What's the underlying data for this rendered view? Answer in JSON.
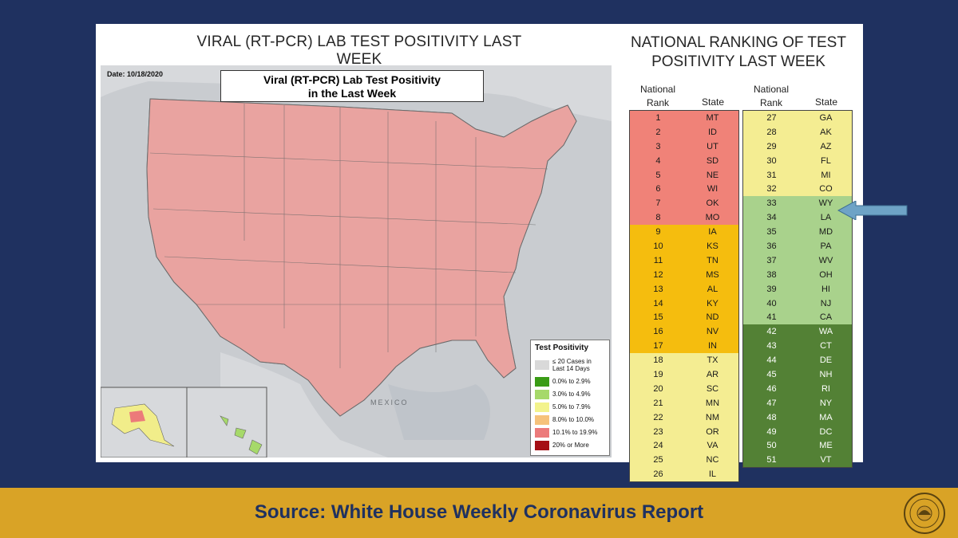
{
  "map_title": "VIRAL (RT-PCR) LAB TEST POSITIVITY LAST WEEK",
  "ranking_title_line1": "NATIONAL RANKING OF TEST",
  "ranking_title_line2": "POSITIVITY LAST WEEK",
  "map": {
    "date": "Date: 10/18/2020",
    "inner_title_line1": "Viral (RT-PCR) Lab Test Positivity",
    "inner_title_line2": "in the Last Week",
    "country_label": "MEXICO",
    "legend": {
      "title": "Test Positivity",
      "items": [
        {
          "label": "≤ 20 Cases in Last 14 Days",
          "color": "#d9d9d9"
        },
        {
          "label": "0.0% to 2.9%",
          "color": "#3a9c16"
        },
        {
          "label": "3.0% to 4.9%",
          "color": "#a6d96a"
        },
        {
          "label": "5.0% to 7.9%",
          "color": "#f3f38c"
        },
        {
          "label": "8.0% to 10.0%",
          "color": "#f6c27a"
        },
        {
          "label": "10.1% to 19.9%",
          "color": "#ec7a7a"
        },
        {
          "label": "20% or More",
          "color": "#a50f15"
        }
      ]
    }
  },
  "ranking": {
    "header_rank": "National Rank",
    "header_state": "State",
    "colors": {
      "red": "#f08278",
      "orange": "#f5bd0e",
      "yellow": "#f4ed92",
      "lightgreen": "#a9d28c",
      "darkgreen": "#538135"
    },
    "left": [
      {
        "rank": "1",
        "state": "MT",
        "band": "red"
      },
      {
        "rank": "2",
        "state": "ID",
        "band": "red"
      },
      {
        "rank": "3",
        "state": "UT",
        "band": "red"
      },
      {
        "rank": "4",
        "state": "SD",
        "band": "red"
      },
      {
        "rank": "5",
        "state": "NE",
        "band": "red"
      },
      {
        "rank": "6",
        "state": "WI",
        "band": "red"
      },
      {
        "rank": "7",
        "state": "OK",
        "band": "red"
      },
      {
        "rank": "8",
        "state": "MO",
        "band": "red"
      },
      {
        "rank": "9",
        "state": "IA",
        "band": "orange"
      },
      {
        "rank": "10",
        "state": "KS",
        "band": "orange"
      },
      {
        "rank": "11",
        "state": "TN",
        "band": "orange"
      },
      {
        "rank": "12",
        "state": "MS",
        "band": "orange"
      },
      {
        "rank": "13",
        "state": "AL",
        "band": "orange"
      },
      {
        "rank": "14",
        "state": "KY",
        "band": "orange"
      },
      {
        "rank": "15",
        "state": "ND",
        "band": "orange"
      },
      {
        "rank": "16",
        "state": "NV",
        "band": "orange"
      },
      {
        "rank": "17",
        "state": "IN",
        "band": "orange"
      },
      {
        "rank": "18",
        "state": "TX",
        "band": "yellow"
      },
      {
        "rank": "19",
        "state": "AR",
        "band": "yellow"
      },
      {
        "rank": "20",
        "state": "SC",
        "band": "yellow"
      },
      {
        "rank": "21",
        "state": "MN",
        "band": "yellow"
      },
      {
        "rank": "22",
        "state": "NM",
        "band": "yellow"
      },
      {
        "rank": "23",
        "state": "OR",
        "band": "yellow"
      },
      {
        "rank": "24",
        "state": "VA",
        "band": "yellow"
      },
      {
        "rank": "25",
        "state": "NC",
        "band": "yellow"
      },
      {
        "rank": "26",
        "state": "IL",
        "band": "yellow"
      }
    ],
    "right": [
      {
        "rank": "27",
        "state": "GA",
        "band": "yellow"
      },
      {
        "rank": "28",
        "state": "AK",
        "band": "yellow"
      },
      {
        "rank": "29",
        "state": "AZ",
        "band": "yellow"
      },
      {
        "rank": "30",
        "state": "FL",
        "band": "yellow"
      },
      {
        "rank": "31",
        "state": "MI",
        "band": "yellow"
      },
      {
        "rank": "32",
        "state": "CO",
        "band": "yellow"
      },
      {
        "rank": "33",
        "state": "WY",
        "band": "lightgreen"
      },
      {
        "rank": "34",
        "state": "LA",
        "band": "lightgreen"
      },
      {
        "rank": "35",
        "state": "MD",
        "band": "lightgreen"
      },
      {
        "rank": "36",
        "state": "PA",
        "band": "lightgreen"
      },
      {
        "rank": "37",
        "state": "WV",
        "band": "lightgreen"
      },
      {
        "rank": "38",
        "state": "OH",
        "band": "lightgreen"
      },
      {
        "rank": "39",
        "state": "HI",
        "band": "lightgreen"
      },
      {
        "rank": "40",
        "state": "NJ",
        "band": "lightgreen"
      },
      {
        "rank": "41",
        "state": "CA",
        "band": "lightgreen"
      },
      {
        "rank": "42",
        "state": "WA",
        "band": "darkgreen"
      },
      {
        "rank": "43",
        "state": "CT",
        "band": "darkgreen"
      },
      {
        "rank": "44",
        "state": "DE",
        "band": "darkgreen"
      },
      {
        "rank": "45",
        "state": "NH",
        "band": "darkgreen"
      },
      {
        "rank": "46",
        "state": "RI",
        "band": "darkgreen"
      },
      {
        "rank": "47",
        "state": "NY",
        "band": "darkgreen"
      },
      {
        "rank": "48",
        "state": "MA",
        "band": "darkgreen"
      },
      {
        "rank": "49",
        "state": "DC",
        "band": "darkgreen"
      },
      {
        "rank": "50",
        "state": "ME",
        "band": "darkgreen"
      },
      {
        "rank": "51",
        "state": "VT",
        "band": "darkgreen"
      }
    ]
  },
  "highlight_state": "LA",
  "footer": {
    "text": "Source: White House Weekly Coronavirus Report"
  }
}
